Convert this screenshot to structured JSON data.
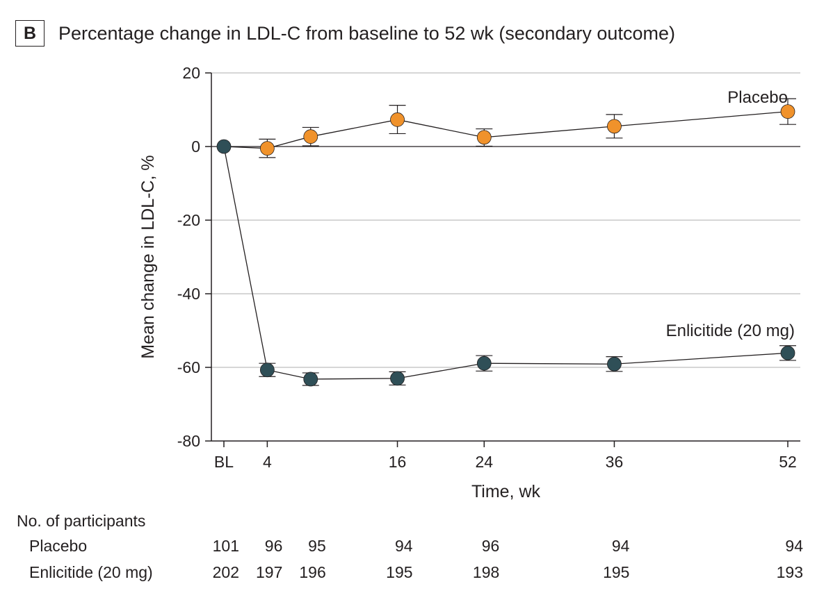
{
  "panel_label": "B",
  "chart_data": {
    "type": "line",
    "title": "Percentage change in LDL-C from baseline to 52 wk (secondary outcome)",
    "xlabel": "Time, wk",
    "ylabel": "Mean change in LDL-C, %",
    "ylim": [
      -80,
      20
    ],
    "yticks": [
      20,
      0,
      -20,
      -40,
      -60,
      -80
    ],
    "xlim": [
      0,
      52
    ],
    "xticks": [
      {
        "value": 0,
        "label": "BL"
      },
      {
        "value": 4,
        "label": "4"
      },
      {
        "value": 16,
        "label": "16"
      },
      {
        "value": 24,
        "label": "24"
      },
      {
        "value": 36,
        "label": "36"
      },
      {
        "value": 52,
        "label": "52"
      }
    ],
    "grid": "horizontal",
    "series": [
      {
        "name": "Placebo",
        "color": "#f0922b",
        "x": [
          4,
          8,
          16,
          24,
          36,
          52
        ],
        "y": [
          -0.5,
          2.7,
          7.3,
          2.5,
          5.5,
          9.5
        ],
        "err_low": [
          -3.0,
          0.2,
          3.5,
          0.1,
          2.3,
          6.0
        ],
        "err_high": [
          2.0,
          5.2,
          11.2,
          4.8,
          8.7,
          13.0
        ],
        "label_position": "above-right"
      },
      {
        "name": "Enlicitide (20 mg)",
        "color": "#2f4f57",
        "x": [
          4,
          8,
          16,
          24,
          36,
          52
        ],
        "y": [
          -60.7,
          -63.2,
          -63.0,
          -58.9,
          -59.1,
          -56.1
        ],
        "err_low": [
          -62.5,
          -64.9,
          -64.8,
          -61.0,
          -61.1,
          -58.1
        ],
        "err_high": [
          -58.9,
          -61.5,
          -61.2,
          -56.8,
          -57.1,
          -54.1
        ],
        "label_position": "above-right"
      }
    ],
    "baseline": {
      "x": 0,
      "y": 0,
      "color": "#2f4f57"
    }
  },
  "participants_table": {
    "title": "No. of participants",
    "columns_x": [
      0,
      4,
      8,
      16,
      24,
      36,
      52
    ],
    "rows": [
      {
        "name": "Placebo",
        "counts": [
          "101",
          "96",
          "95",
          "94",
          "96",
          "94",
          "94"
        ]
      },
      {
        "name": "Enlicitide (20 mg)",
        "counts": [
          "202",
          "197",
          "196",
          "195",
          "198",
          "195",
          "193"
        ]
      }
    ]
  }
}
